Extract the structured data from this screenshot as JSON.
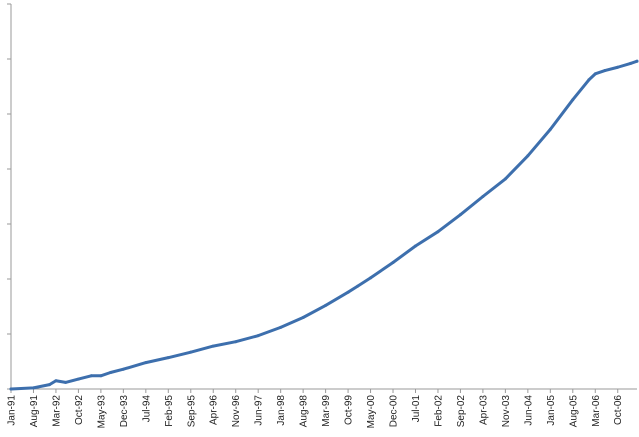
{
  "chart_data": {
    "type": "line",
    "title": "",
    "xlabel": "",
    "ylabel": "",
    "x_start": "1991-01",
    "x_end": "2007-04",
    "y_ticks": 7,
    "ylim": [
      0,
      7
    ],
    "grid": false,
    "legend": "none",
    "colors": {
      "line": "#3d6fad",
      "axis": "#9a9a9a",
      "text": "#222222"
    },
    "x_tick_labels": [
      {
        "label": "Jan-91",
        "date": "1991-01"
      },
      {
        "label": "Aug-91",
        "date": "1991-08"
      },
      {
        "label": "Mar-92",
        "date": "1992-03"
      },
      {
        "label": "Oct-92",
        "date": "1992-10"
      },
      {
        "label": "May-93",
        "date": "1993-05"
      },
      {
        "label": "Dec-93",
        "date": "1993-12"
      },
      {
        "label": "Jul-94",
        "date": "1994-07"
      },
      {
        "label": "Feb-95",
        "date": "1995-02"
      },
      {
        "label": "Sep-95",
        "date": "1995-09"
      },
      {
        "label": "Apr-96",
        "date": "1996-04"
      },
      {
        "label": "Nov-96",
        "date": "1996-11"
      },
      {
        "label": "Jun-97",
        "date": "1997-06"
      },
      {
        "label": "Jan-98",
        "date": "1998-01"
      },
      {
        "label": "Aug-98",
        "date": "1998-08"
      },
      {
        "label": "Mar-99",
        "date": "1999-03"
      },
      {
        "label": "Oct-99",
        "date": "1999-10"
      },
      {
        "label": "May-00",
        "date": "2000-05"
      },
      {
        "label": "Dec-00",
        "date": "2000-12"
      },
      {
        "label": "Jul-01",
        "date": "2001-07"
      },
      {
        "label": "Feb-02",
        "date": "2002-02"
      },
      {
        "label": "Sep-02",
        "date": "2002-09"
      },
      {
        "label": "Apr-03",
        "date": "2003-04"
      },
      {
        "label": "Nov-03",
        "date": "2003-11"
      },
      {
        "label": "Jun-04",
        "date": "2004-06"
      },
      {
        "label": "Jan-05",
        "date": "2005-01"
      },
      {
        "label": "Aug-05",
        "date": "2005-08"
      },
      {
        "label": "Mar-06",
        "date": "2006-03"
      },
      {
        "label": "Oct-06",
        "date": "2006-10"
      }
    ],
    "series": [
      {
        "points": [
          {
            "x": "1991-01",
            "y": 0.0
          },
          {
            "x": "1991-08",
            "y": 0.02
          },
          {
            "x": "1992-01",
            "y": 0.08
          },
          {
            "x": "1992-03",
            "y": 0.15
          },
          {
            "x": "1992-06",
            "y": 0.12
          },
          {
            "x": "1992-10",
            "y": 0.18
          },
          {
            "x": "1993-02",
            "y": 0.24
          },
          {
            "x": "1993-05",
            "y": 0.24
          },
          {
            "x": "1993-08",
            "y": 0.3
          },
          {
            "x": "1993-12",
            "y": 0.36
          },
          {
            "x": "1994-07",
            "y": 0.48
          },
          {
            "x": "1995-02",
            "y": 0.57
          },
          {
            "x": "1995-09",
            "y": 0.67
          },
          {
            "x": "1996-04",
            "y": 0.78
          },
          {
            "x": "1996-11",
            "y": 0.86
          },
          {
            "x": "1997-06",
            "y": 0.97
          },
          {
            "x": "1998-01",
            "y": 1.12
          },
          {
            "x": "1998-08",
            "y": 1.3
          },
          {
            "x": "1999-03",
            "y": 1.52
          },
          {
            "x": "1999-10",
            "y": 1.76
          },
          {
            "x": "2000-01",
            "y": 1.87
          },
          {
            "x": "2000-05",
            "y": 2.02
          },
          {
            "x": "2000-12",
            "y": 2.3
          },
          {
            "x": "2001-07",
            "y": 2.6
          },
          {
            "x": "2002-02",
            "y": 2.86
          },
          {
            "x": "2002-09",
            "y": 3.17
          },
          {
            "x": "2003-04",
            "y": 3.5
          },
          {
            "x": "2003-11",
            "y": 3.82
          },
          {
            "x": "2004-06",
            "y": 4.24
          },
          {
            "x": "2005-01",
            "y": 4.72
          },
          {
            "x": "2005-08",
            "y": 5.26
          },
          {
            "x": "2006-01",
            "y": 5.62
          },
          {
            "x": "2006-03",
            "y": 5.73
          },
          {
            "x": "2006-06",
            "y": 5.79
          },
          {
            "x": "2006-10",
            "y": 5.85
          },
          {
            "x": "2007-02",
            "y": 5.92
          },
          {
            "x": "2007-04",
            "y": 5.96
          }
        ]
      }
    ]
  }
}
